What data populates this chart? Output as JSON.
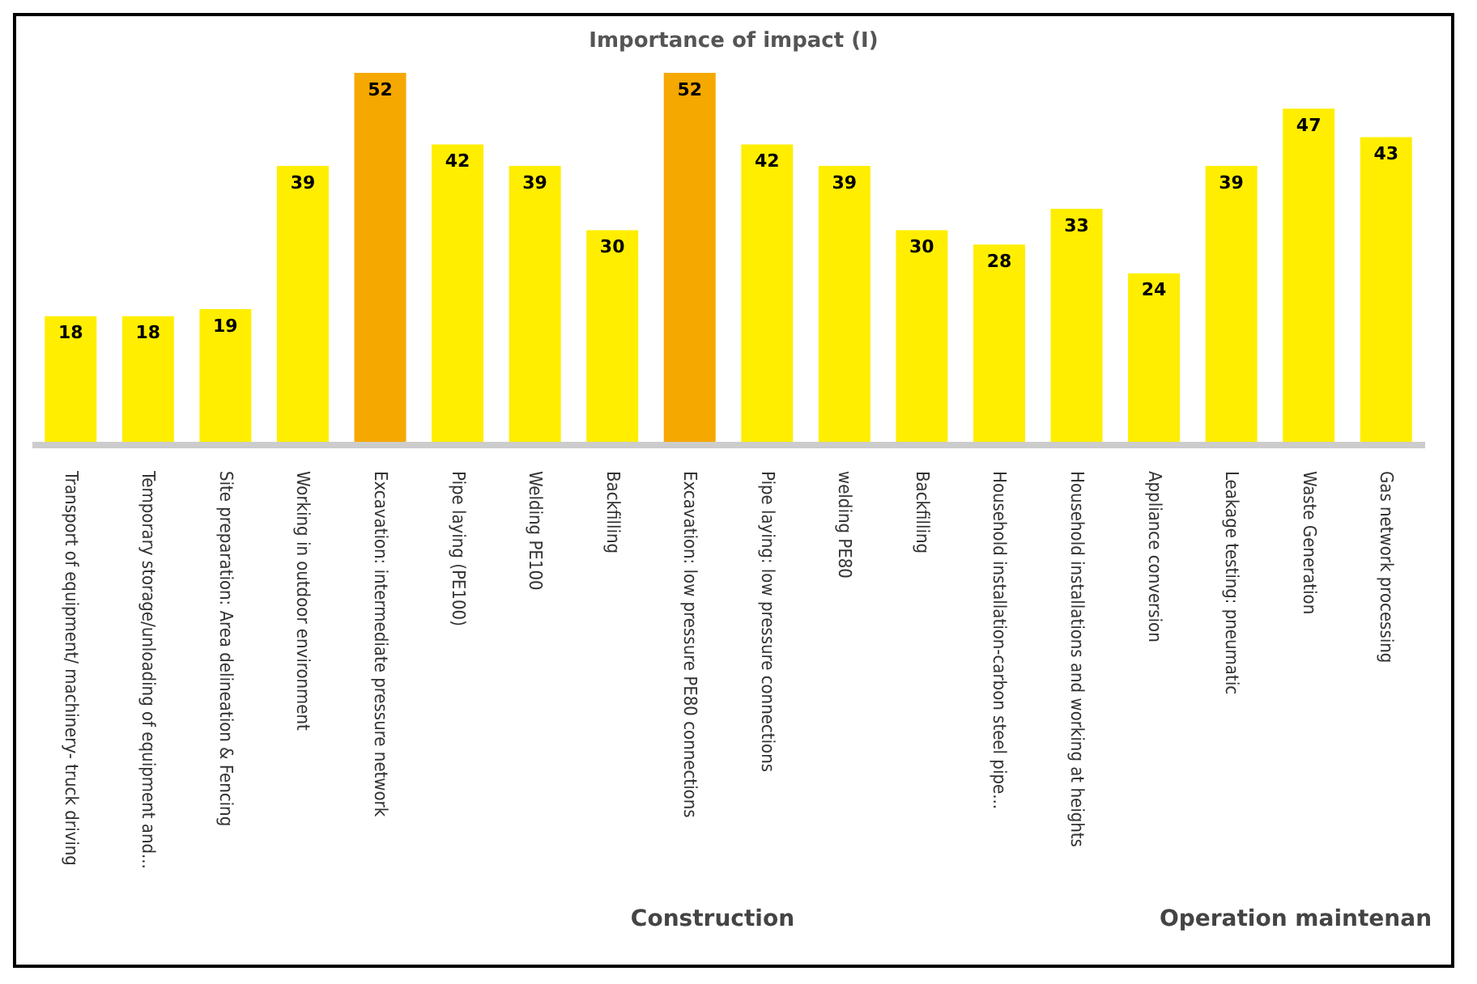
{
  "chart_data": {
    "type": "bar",
    "title": "Importance of impact (I)",
    "categories": [
      "Transport of equipment/ machinery- truck driving",
      "Temporary storage/unloading of equipment and...",
      "Site preparation: Area delineation & Fencing",
      "Working in outdoor environment",
      "Excavation: intermediate pressure network",
      "Pipe laying (PE100)",
      "Welding PE100",
      "Backfilling",
      "Excavation: low pressure  PE80 connections",
      "Pipe laying: low pressure connections",
      "welding PE80",
      "Backfilling",
      "Household installation-carbon steel pipe...",
      "Household installations and working at heights",
      "Appliance conversion",
      "Leakage testing: pneumatic",
      "Waste Generation",
      "Gas network processing"
    ],
    "values": [
      18,
      18,
      19,
      39,
      52,
      42,
      39,
      30,
      52,
      42,
      39,
      30,
      28,
      33,
      24,
      39,
      47,
      43
    ],
    "colors": [
      "#ffee00",
      "#ffee00",
      "#ffee00",
      "#ffee00",
      "#f5a800",
      "#ffee00",
      "#ffee00",
      "#ffee00",
      "#f5a800",
      "#ffee00",
      "#ffee00",
      "#ffee00",
      "#ffee00",
      "#ffee00",
      "#ffee00",
      "#ffee00",
      "#ffee00",
      "#ffee00"
    ],
    "data_labels": true,
    "annotations": [
      "Construction",
      "Operation maintenan"
    ]
  }
}
